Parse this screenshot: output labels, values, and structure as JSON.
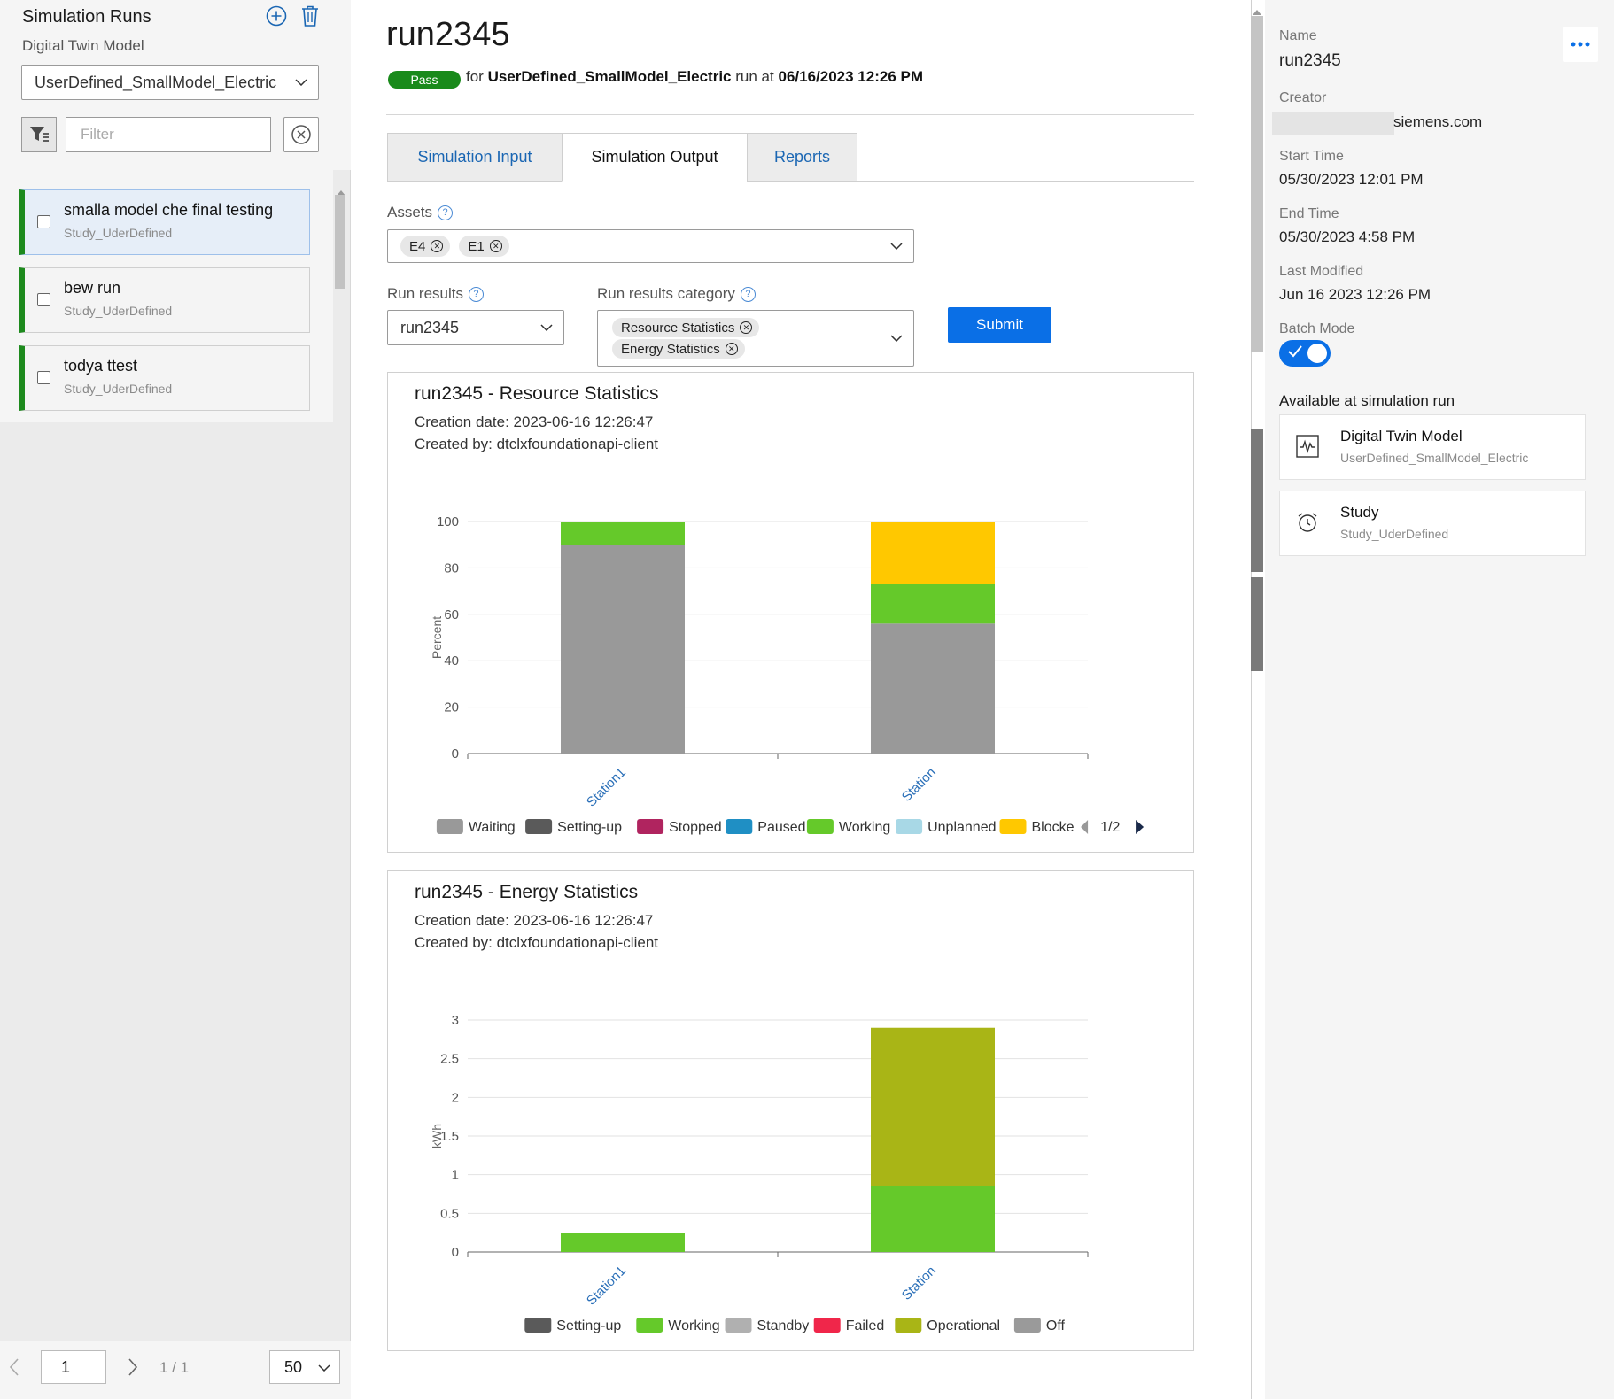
{
  "sidebar": {
    "title": "Simulation Runs",
    "model_label": "Digital Twin Model",
    "model_value": "UserDefined_SmallModel_Electric",
    "filter_placeholder": "Filter",
    "runs": [
      {
        "title": "smalla model che final testing",
        "study": "Study_UderDefined",
        "selected": true
      },
      {
        "title": "bew run",
        "study": "Study_UderDefined",
        "selected": false
      },
      {
        "title": "todya ttest",
        "study": "Study_UderDefined",
        "selected": false
      }
    ],
    "pager": {
      "page": "1",
      "count": "1 / 1",
      "size": "50"
    }
  },
  "main": {
    "title": "run2345",
    "status": "Pass",
    "meta_for": "for",
    "meta_model": "UserDefined_SmallModel_Electric",
    "meta_run_at": "run at",
    "meta_time": "06/16/2023 12:26 PM",
    "tabs": [
      {
        "label": "Simulation Input",
        "active": false
      },
      {
        "label": "Simulation Output",
        "active": true
      },
      {
        "label": "Reports",
        "active": false
      }
    ],
    "assets_label": "Assets",
    "assets": [
      "E4",
      "E1"
    ],
    "run_results_label": "Run results",
    "run_results_value": "run2345",
    "category_label": "Run results category",
    "categories": [
      "Resource Statistics",
      "Energy Statistics"
    ],
    "submit_label": "Submit",
    "help_glyph": "?"
  },
  "charts_meta": [
    {
      "title": "run2345 - Resource Statistics",
      "created": "Creation date: 2023-06-16 12:26:47",
      "by": "Created by: dtclxfoundationapi-client",
      "legend_page": "1/2"
    },
    {
      "title": "run2345 - Energy Statistics",
      "created": "Creation date: 2023-06-16 12:26:47",
      "by": "Created by: dtclxfoundationapi-client",
      "legend_page": ""
    }
  ],
  "chart_data": [
    {
      "type": "bar",
      "stacked": true,
      "categories": [
        "Station1",
        "Station"
      ],
      "ylabel": "Percent",
      "ylim": [
        0,
        100
      ],
      "yticks": [
        "0",
        "20",
        "40",
        "60",
        "80",
        "100"
      ],
      "series": [
        {
          "name": "Waiting",
          "color": "#999999",
          "values": [
            90,
            56
          ]
        },
        {
          "name": "Setting-up",
          "color": "#5a5a5a",
          "values": [
            0,
            0
          ]
        },
        {
          "name": "Stopped",
          "color": "#b0245f",
          "values": [
            0,
            0
          ]
        },
        {
          "name": "Paused",
          "color": "#1f8fc4",
          "values": [
            0,
            0
          ]
        },
        {
          "name": "Working",
          "color": "#65c92a",
          "values": [
            10,
            17
          ]
        },
        {
          "name": "Unplanned",
          "color": "#a8d8e6",
          "values": [
            0,
            0
          ]
        },
        {
          "name": "Blocke",
          "color": "#ffc800",
          "values": [
            0,
            27
          ]
        }
      ],
      "legend": "bottom"
    },
    {
      "type": "bar",
      "stacked": true,
      "categories": [
        "Station1",
        "Station"
      ],
      "ylabel": "kWh",
      "ylim": [
        0,
        3
      ],
      "yticks": [
        "0",
        "0.5",
        "1",
        "1.5",
        "2",
        "2.5",
        "3"
      ],
      "series": [
        {
          "name": "Setting-up",
          "color": "#5a5a5a",
          "values": [
            0,
            0
          ]
        },
        {
          "name": "Working",
          "color": "#65c92a",
          "values": [
            0.25,
            0.85
          ]
        },
        {
          "name": "Standby",
          "color": "#b0b0b0",
          "values": [
            0,
            0
          ]
        },
        {
          "name": "Failed",
          "color": "#f0264a",
          "values": [
            0,
            0
          ]
        },
        {
          "name": "Operational",
          "color": "#a9b516",
          "values": [
            0,
            2.05
          ]
        },
        {
          "name": "Off",
          "color": "#9a9a9a",
          "values": [
            0,
            0
          ]
        }
      ],
      "legend": "bottom"
    }
  ],
  "details": {
    "name_label": "Name",
    "name_value": "run2345",
    "creator_label": "Creator",
    "creator_value": "siemens.com",
    "start_label": "Start Time",
    "start_value": "05/30/2023 12:01 PM",
    "end_label": "End Time",
    "end_value": "05/30/2023 4:58 PM",
    "modified_label": "Last Modified",
    "modified_value": "Jun 16 2023 12:26 PM",
    "batch_label": "Batch Mode",
    "batch_on": true,
    "available_label": "Available at simulation run",
    "cards": [
      {
        "title": "Digital Twin Model",
        "sub": "UserDefined_SmallModel_Electric",
        "icon": "model-icon"
      },
      {
        "title": "Study",
        "sub": "Study_UderDefined",
        "icon": "alarm-clock-icon"
      }
    ]
  },
  "colors": {
    "accent": "#0a6fe6",
    "pass": "#198a1b",
    "link": "#1a66b3"
  }
}
